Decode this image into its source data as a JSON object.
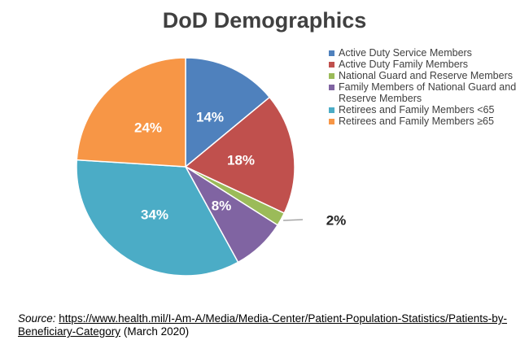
{
  "chart_data": {
    "type": "pie",
    "title": "DoD Demographics",
    "categories": [
      "Active Duty Service Members",
      "Active Duty Family Members",
      "National Guard and Reserve Members",
      "Family Members of National Guard and Reserve Members",
      "Retirees and Family Members <65",
      "Retirees and Family Members ≥65"
    ],
    "values": [
      14,
      18,
      2,
      8,
      34,
      24
    ],
    "labels": [
      "14%",
      "18%",
      "2%",
      "8%",
      "34%",
      "24%"
    ],
    "colors": [
      "#4f81bd",
      "#c0504d",
      "#9bbb59",
      "#8064a2",
      "#4bacc6",
      "#f79646"
    ],
    "legend_position": "right"
  },
  "source": {
    "label": "Source:",
    "link_text": "https://www.health.mil/I-Am-A/Media/Media-Center/Patient-Population-Statistics/Patients-by-Beneficiary-Category",
    "suffix": "(March 2020)"
  }
}
